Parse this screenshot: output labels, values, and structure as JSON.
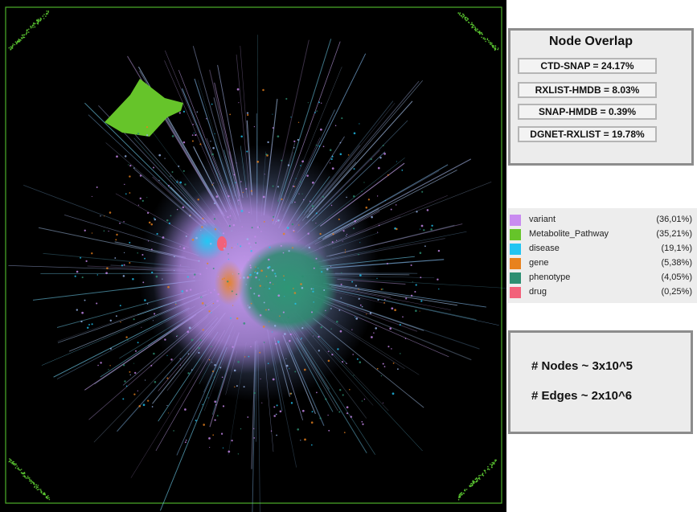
{
  "overlap": {
    "title": "Node Overlap",
    "items": [
      {
        "label": "CTD-SNAP = 24.17%"
      },
      {
        "label": "RXLIST-HMDB = 8.03%"
      },
      {
        "label": "SNAP-HMDB = 0.39%"
      },
      {
        "label": "DGNET-RXLIST = 19.78%"
      }
    ]
  },
  "legend": {
    "items": [
      {
        "label": "variant",
        "percent": "(36,01%)",
        "color": "#c98bf0"
      },
      {
        "label": "Metabolite_Pathway",
        "percent": "(35,21%)",
        "color": "#66c42a"
      },
      {
        "label": "disease",
        "percent": "(19,1%)",
        "color": "#21c4f2"
      },
      {
        "label": "gene",
        "percent": "(5,38%)",
        "color": "#e8821e"
      },
      {
        "label": "phenotype",
        "percent": "(4,05%)",
        "color": "#2d8f72"
      },
      {
        "label": "drug",
        "percent": "(0,25%)",
        "color": "#f2617a"
      }
    ]
  },
  "stats": {
    "nodes": "# Nodes ~ 3x10^5",
    "edges": "# Edges ~ 2x10^6"
  }
}
